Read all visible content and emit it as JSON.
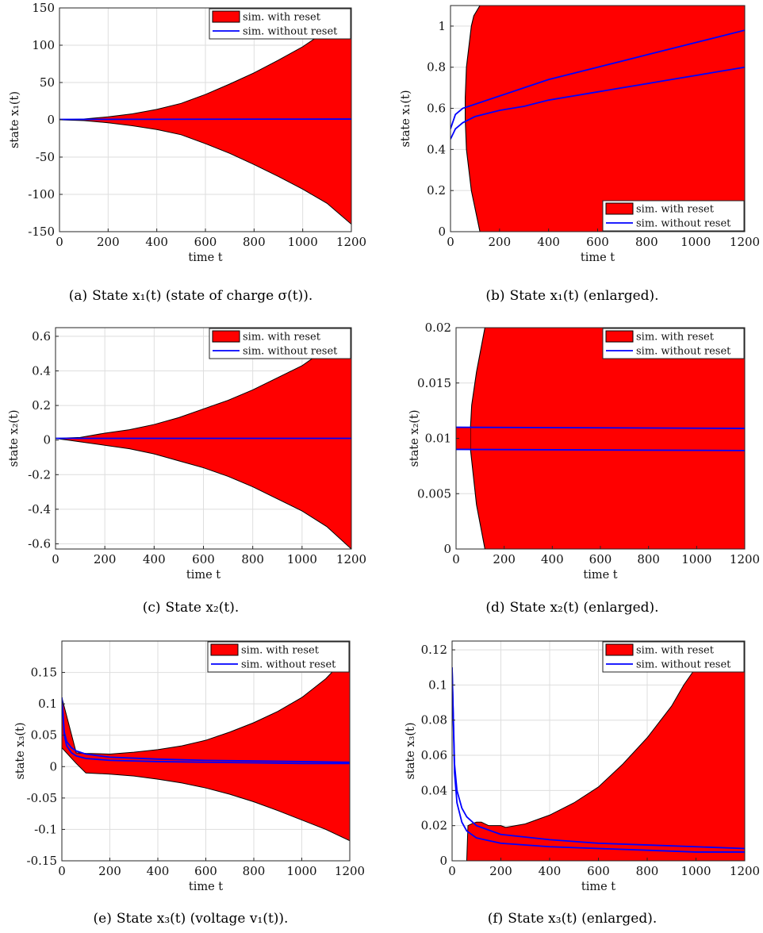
{
  "chart_data": [
    {
      "id": "a",
      "type": "area",
      "caption_tag": "(a)",
      "caption": "State x₁(t) (state of charge σ(t)).",
      "xlabel": "time t",
      "ylabel": "state x₁(t)",
      "xlim": [
        0,
        1200
      ],
      "ylim": [
        -150,
        150
      ],
      "xticks": [
        "0",
        "200",
        "400",
        "600",
        "800",
        "1000",
        "1200"
      ],
      "yticks": [
        "-150",
        "-100",
        "-50",
        "0",
        "50",
        "100",
        "150"
      ],
      "legend_position": "top-right",
      "grid": true,
      "series": [
        {
          "name": "sim. with reset",
          "kind": "band",
          "color": "#ff0000",
          "upper": {
            "x": [
              0,
              100,
              200,
              300,
              400,
              500,
              600,
              700,
              800,
              900,
              1000,
              1100,
              1200
            ],
            "y": [
              0,
              1,
              4,
              8,
              14,
              22,
              34,
              48,
              63,
              80,
              98,
              120,
              145
            ]
          },
          "lower": {
            "x": [
              0,
              100,
              200,
              300,
              400,
              500,
              600,
              700,
              800,
              900,
              1000,
              1100,
              1200
            ],
            "y": [
              0,
              -1,
              -4,
              -8,
              -13,
              -20,
              -32,
              -45,
              -60,
              -76,
              -93,
              -112,
              -140
            ]
          }
        },
        {
          "name": "sim. without reset",
          "kind": "line",
          "color": "#0000ff",
          "x": [
            0,
            300,
            600,
            900,
            1200
          ],
          "y": [
            0.5,
            0.7,
            0.8,
            0.9,
            0.98
          ]
        }
      ]
    },
    {
      "id": "b",
      "type": "area",
      "caption_tag": "(b)",
      "caption": "State x₁(t) (enlarged).",
      "xlabel": "time t",
      "ylabel": "state x₁(t)",
      "xlim": [
        0,
        1200
      ],
      "ylim": [
        0,
        1.1
      ],
      "xticks": [
        "0",
        "200",
        "400",
        "600",
        "800",
        "1000",
        "1200"
      ],
      "yticks": [
        "0",
        "0.2",
        "0.4",
        "0.6",
        "0.8",
        "1"
      ],
      "legend_position": "bottom-right",
      "grid": true,
      "series": [
        {
          "name": "sim. with reset",
          "kind": "band",
          "color": "#ff0000",
          "upper": {
            "x": [
              0,
              1200
            ],
            "y": [
              1.1,
              1.1
            ]
          },
          "lower": {
            "x": [
              0,
              1200
            ],
            "y": [
              0,
              0
            ]
          },
          "left_edge": {
            "x": [
              120,
              85,
              65,
              60,
              60,
              65,
              85,
              95,
              120
            ],
            "y": [
              0,
              0.2,
              0.4,
              0.55,
              0.65,
              0.8,
              1.0,
              1.05,
              1.1
            ]
          }
        },
        {
          "name": "sim. without reset",
          "kind": "line",
          "color": "#0000ff",
          "x": [
            0,
            20,
            50,
            100,
            200,
            300,
            400,
            500,
            600,
            700,
            800,
            900,
            1000,
            1100,
            1200
          ],
          "y": [
            0.5,
            0.57,
            0.6,
            0.62,
            0.66,
            0.7,
            0.74,
            0.77,
            0.8,
            0.83,
            0.86,
            0.89,
            0.92,
            0.95,
            0.98
          ]
        },
        {
          "name": "",
          "kind": "line",
          "color": "#0000ff",
          "x": [
            0,
            20,
            50,
            100,
            200,
            300,
            400,
            500,
            600,
            700,
            800,
            900,
            1000,
            1100,
            1200
          ],
          "y": [
            0.45,
            0.5,
            0.53,
            0.56,
            0.59,
            0.61,
            0.64,
            0.66,
            0.68,
            0.7,
            0.72,
            0.74,
            0.76,
            0.78,
            0.8
          ]
        }
      ]
    },
    {
      "id": "c",
      "type": "area",
      "caption_tag": "(c)",
      "caption": "State x₂(t).",
      "xlabel": "time t",
      "ylabel": "state x₂(t)",
      "xlim": [
        0,
        1200
      ],
      "ylim": [
        -0.63,
        0.65
      ],
      "xticks": [
        "0",
        "200",
        "400",
        "600",
        "800",
        "1000",
        "1200"
      ],
      "yticks": [
        "-0.6",
        "-0.4",
        "-0.2",
        "0",
        "0.2",
        "0.4",
        "0.6"
      ],
      "legend_position": "top-right",
      "grid": true,
      "series": [
        {
          "name": "sim. with reset",
          "kind": "band",
          "color": "#ff0000",
          "upper": {
            "x": [
              0,
              100,
              200,
              300,
              400,
              500,
              600,
              700,
              800,
              900,
              1000,
              1100,
              1200
            ],
            "y": [
              0.01,
              0.015,
              0.04,
              0.06,
              0.09,
              0.13,
              0.18,
              0.23,
              0.29,
              0.36,
              0.43,
              0.53,
              0.65
            ]
          },
          "lower": {
            "x": [
              0,
              100,
              200,
              300,
              400,
              500,
              600,
              700,
              800,
              900,
              1000,
              1100,
              1200
            ],
            "y": [
              0.01,
              -0.01,
              -0.03,
              -0.05,
              -0.08,
              -0.12,
              -0.16,
              -0.21,
              -0.27,
              -0.34,
              -0.41,
              -0.5,
              -0.63
            ]
          }
        },
        {
          "name": "sim. without reset",
          "kind": "line",
          "color": "#0000ff",
          "x": [
            0,
            1200
          ],
          "y": [
            0.01,
            0.01
          ]
        }
      ]
    },
    {
      "id": "d",
      "type": "area",
      "caption_tag": "(d)",
      "caption": "State x₂(t) (enlarged).",
      "xlabel": "time t",
      "ylabel": "state x₂(t)",
      "xlim": [
        0,
        1200
      ],
      "ylim": [
        0,
        0.02
      ],
      "xticks": [
        "0",
        "200",
        "400",
        "600",
        "800",
        "1000",
        "1200"
      ],
      "yticks": [
        "0",
        "0.005",
        "0.01",
        "0.015",
        "0.02"
      ],
      "legend_position": "top-right",
      "grid": true,
      "series": [
        {
          "name": "sim. with reset",
          "kind": "band",
          "color": "#ff0000",
          "upper": {
            "x": [
              0,
              1200
            ],
            "y": [
              0.02,
              0.02
            ]
          },
          "lower": {
            "x": [
              0,
              1200
            ],
            "y": [
              0,
              0
            ]
          },
          "left_edge": {
            "x": [
              120,
              85,
              65,
              60,
              60,
              65,
              85,
              120
            ],
            "y": [
              0,
              0.004,
              0.008,
              0.009,
              0.011,
              0.013,
              0.016,
              0.02
            ]
          }
        },
        {
          "name": "sim. without reset",
          "kind": "line",
          "color": "#0000ff",
          "x": [
            0,
            1200
          ],
          "y": [
            0.011,
            0.0109
          ]
        },
        {
          "name": "",
          "kind": "line",
          "color": "#0000ff",
          "x": [
            0,
            1200
          ],
          "y": [
            0.009,
            0.0089
          ]
        }
      ],
      "band_between": {
        "x": [
          0,
          60
        ],
        "y": [
          0.009,
          0.011
        ]
      }
    },
    {
      "id": "e",
      "type": "area",
      "caption_tag": "(e)",
      "caption": "State x₃(t) (voltage v₁(t)).",
      "xlabel": "time t",
      "ylabel": "state x₃(t)",
      "xlim": [
        0,
        1200
      ],
      "ylim": [
        -0.15,
        0.2
      ],
      "xticks": [
        "0",
        "200",
        "400",
        "600",
        "800",
        "1000",
        "1200"
      ],
      "yticks": [
        "-0.15",
        "-0.1",
        "-0.05",
        "0",
        "0.05",
        "0.1",
        "0.15"
      ],
      "legend_position": "top-right",
      "grid": true,
      "series": [
        {
          "name": "sim. with reset",
          "kind": "band",
          "color": "#ff0000",
          "upper": {
            "x": [
              0,
              60,
              100,
              200,
              300,
              400,
              500,
              600,
              700,
              800,
              900,
              1000,
              1100,
              1200
            ],
            "y": [
              0.11,
              0.022,
              0.021,
              0.02,
              0.023,
              0.027,
              0.033,
              0.042,
              0.055,
              0.07,
              0.088,
              0.11,
              0.14,
              0.18
            ]
          },
          "lower": {
            "x": [
              0,
              60,
              100,
              200,
              300,
              400,
              500,
              600,
              700,
              800,
              900,
              1000,
              1100,
              1200
            ],
            "y": [
              0.03,
              0.005,
              -0.01,
              -0.012,
              -0.015,
              -0.02,
              -0.026,
              -0.034,
              -0.044,
              -0.056,
              -0.07,
              -0.085,
              -0.1,
              -0.118
            ]
          }
        },
        {
          "name": "sim. without reset",
          "kind": "line",
          "color": "#0000ff",
          "x": [
            0,
            10,
            20,
            40,
            60,
            100,
            200,
            400,
            600,
            800,
            1000,
            1200
          ],
          "y": [
            0.11,
            0.055,
            0.04,
            0.03,
            0.025,
            0.02,
            0.015,
            0.012,
            0.01,
            0.009,
            0.008,
            0.007
          ]
        },
        {
          "name": "",
          "kind": "line",
          "color": "#0000ff",
          "x": [
            0,
            10,
            20,
            40,
            60,
            100,
            200,
            400,
            600,
            800,
            1000,
            1200
          ],
          "y": [
            0.11,
            0.05,
            0.033,
            0.022,
            0.017,
            0.013,
            0.01,
            0.008,
            0.007,
            0.006,
            0.005,
            0.005
          ]
        }
      ]
    },
    {
      "id": "f",
      "type": "area",
      "caption_tag": "(f)",
      "caption": "State x₃(t) (enlarged).",
      "xlabel": "time t",
      "ylabel": "state x₃(t)",
      "xlim": [
        0,
        1200
      ],
      "ylim": [
        0,
        0.125
      ],
      "xticks": [
        "0",
        "200",
        "400",
        "600",
        "800",
        "1000",
        "1200"
      ],
      "yticks": [
        "0",
        "0.02",
        "0.04",
        "0.06",
        "0.08",
        "0.1",
        "0.12"
      ],
      "legend_position": "top-right",
      "grid": true,
      "series": [
        {
          "name": "sim. with reset",
          "kind": "band",
          "color": "#ff0000",
          "upper": {
            "x": [
              60,
              65,
              80,
              100,
              120,
              150,
              200,
              220,
              300,
              400,
              500,
              600,
              700,
              800,
              900,
              950,
              1000,
              1050,
              1100,
              1200
            ],
            "y": [
              0,
              0.02,
              0.021,
              0.022,
              0.022,
              0.02,
              0.02,
              0.019,
              0.021,
              0.026,
              0.033,
              0.042,
              0.055,
              0.07,
              0.088,
              0.1,
              0.11,
              0.12,
              0.125,
              0.125
            ]
          },
          "lower": {
            "x": [
              60,
              1200
            ],
            "y": [
              0,
              0
            ]
          }
        },
        {
          "name": "sim. without reset",
          "kind": "line",
          "color": "#0000ff",
          "x": [
            0,
            10,
            20,
            40,
            60,
            100,
            200,
            400,
            600,
            800,
            1000,
            1200
          ],
          "y": [
            0.11,
            0.055,
            0.04,
            0.03,
            0.025,
            0.02,
            0.015,
            0.012,
            0.01,
            0.009,
            0.008,
            0.007
          ]
        },
        {
          "name": "",
          "kind": "line",
          "color": "#0000ff",
          "x": [
            0,
            10,
            20,
            40,
            60,
            100,
            200,
            400,
            600,
            800,
            1000,
            1200
          ],
          "y": [
            0.11,
            0.05,
            0.033,
            0.022,
            0.017,
            0.013,
            0.01,
            0.008,
            0.007,
            0.006,
            0.005,
            0.005
          ]
        }
      ]
    }
  ]
}
